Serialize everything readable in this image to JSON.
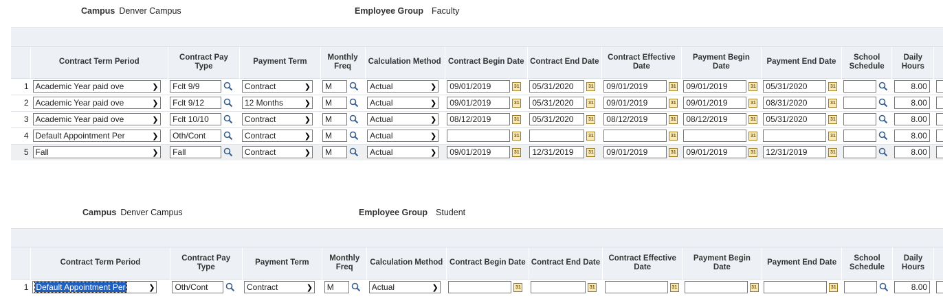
{
  "icons": {
    "lookup": "magnifier-icon",
    "calendar": "calendar-icon",
    "dropdown": "chevron-down-icon"
  },
  "colors": {
    "header_bg": "#edf1f5",
    "selected_bg": "#1f5fbf"
  },
  "columns": [
    "Contract Term Period",
    "Contract Pay Type",
    "Payment Term",
    "Monthly Freq",
    "Calculation Method",
    "Contract Begin Date",
    "Contract End Date",
    "Contract Effective Date",
    "Payment Begin Date",
    "Payment End Date",
    "School Schedule",
    "Daily Hours"
  ],
  "section1": {
    "campus_label": "Campus",
    "campus_value": "Denver Campus",
    "group_label": "Employee Group",
    "group_value": "Faculty",
    "rows": [
      {
        "num": "1",
        "term": "Academic Year paid ove",
        "pay_type": "Fclt 9/9",
        "payment_term": "Contract",
        "freq": "M",
        "calc": "Actual",
        "begin": "09/01/2019",
        "end": "05/31/2020",
        "effective": "09/01/2019",
        "pay_begin": "09/01/2019",
        "pay_end": "05/31/2020",
        "school": "",
        "hours": "8.00"
      },
      {
        "num": "2",
        "term": "Academic Year paid ove",
        "pay_type": "Fclt 9/12",
        "payment_term": "12 Months",
        "freq": "M",
        "calc": "Actual",
        "begin": "09/01/2019",
        "end": "05/31/2020",
        "effective": "09/01/2019",
        "pay_begin": "09/01/2019",
        "pay_end": "08/31/2020",
        "school": "",
        "hours": "8.00"
      },
      {
        "num": "3",
        "term": "Academic Year paid ove",
        "pay_type": "Fclt 10/10",
        "payment_term": "Contract",
        "freq": "M",
        "calc": "Actual",
        "begin": "08/12/2019",
        "end": "05/31/2020",
        "effective": "08/12/2019",
        "pay_begin": "08/12/2019",
        "pay_end": "05/31/2020",
        "school": "",
        "hours": "8.00"
      },
      {
        "num": "4",
        "term": "Default Appointment Per",
        "pay_type": "Oth/Cont",
        "payment_term": "Contract",
        "freq": "M",
        "calc": "Actual",
        "begin": "",
        "end": "",
        "effective": "",
        "pay_begin": "",
        "pay_end": "",
        "school": "",
        "hours": "8.00"
      },
      {
        "num": "5",
        "term": "Fall",
        "pay_type": "Fall",
        "payment_term": "Contract",
        "freq": "M",
        "calc": "Actual",
        "begin": "09/01/2019",
        "end": "12/31/2019",
        "effective": "09/01/2019",
        "pay_begin": "09/01/2019",
        "pay_end": "12/31/2019",
        "school": "",
        "hours": "8.00"
      }
    ]
  },
  "section2": {
    "campus_label": "Campus",
    "campus_value": "Denver Campus",
    "group_label": "Employee Group",
    "group_value": "Student",
    "rows": [
      {
        "num": "1",
        "term": "Default Appointment Per",
        "pay_type": "Oth/Cont",
        "payment_term": "Contract",
        "freq": "M",
        "calc": "Actual",
        "begin": "",
        "end": "",
        "effective": "",
        "pay_begin": "",
        "pay_end": "",
        "school": "",
        "hours": "8.00"
      }
    ]
  }
}
